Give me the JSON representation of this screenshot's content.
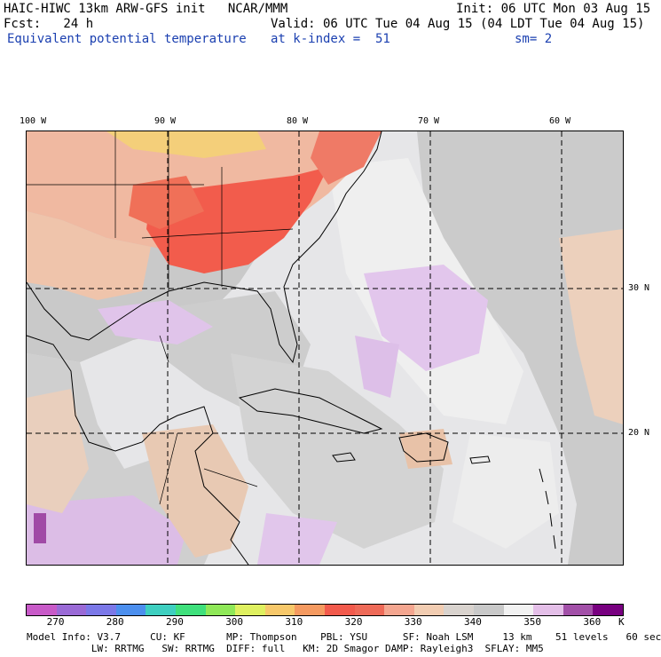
{
  "header": {
    "line1_left": "HAIC-HIWC 13km ARW-GFS init   NCAR/MMM",
    "line1_right": "Init: 06 UTC Mon 03 Aug 15",
    "line2_left": "Fcst:   24 h",
    "line2_right": "Valid: 06 UTC Tue 04 Aug 15 (04 LDT Tue 04 Aug 15)",
    "line3_left": "Equivalent potential temperature",
    "line3_mid": "at k-index =  51",
    "line3_right": "sm= 2"
  },
  "map": {
    "lon_labels": [
      "100 W",
      "90 W",
      "80 W",
      "70 W",
      "60 W"
    ],
    "lat_labels": [
      "30 N",
      "20 N"
    ]
  },
  "colorbar": {
    "labels": [
      "270",
      "280",
      "290",
      "300",
      "310",
      "320",
      "330",
      "340",
      "350",
      "360",
      "K"
    ],
    "colors": [
      "#c85ac8",
      "#9a6ad6",
      "#7b78e8",
      "#4c8fee",
      "#3ecfc0",
      "#3fe07c",
      "#8fe858",
      "#dff060",
      "#f7c86a",
      "#f59a60",
      "#f25a4c",
      "#ee6a58",
      "#f4a690",
      "#f2cdb2",
      "#d9d3ce",
      "#c9c9c9",
      "#f2f2f2",
      "#e4bfe8",
      "#a250a8",
      "#780080"
    ]
  },
  "footer": {
    "line1": "Model Info: V3.7     CU: KF       MP: Thompson    PBL: YSU      SF: Noah LSM     13 km    51 levels   60 sec",
    "line2": "           LW: RRTMG   SW: RRTMG  DIFF: full   KM: 2D Smagor DAMP: Rayleigh3  SFLAY: MM5"
  }
}
